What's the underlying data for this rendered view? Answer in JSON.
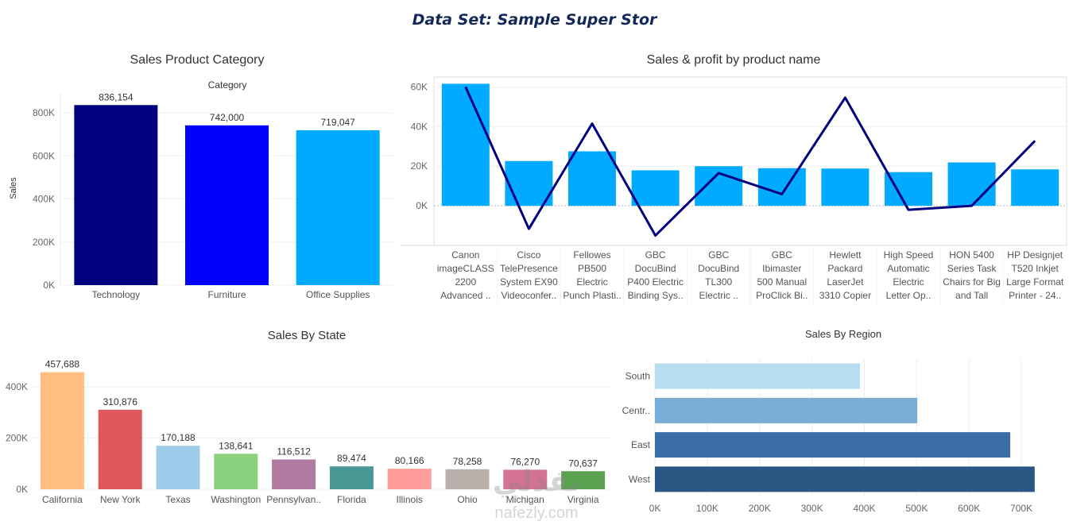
{
  "dashboard": {
    "title": "Data Set: Sample Super Stor"
  },
  "watermark": {
    "arabic": "نفذلي",
    "url": "nafezly.com"
  },
  "chart_data": [
    {
      "id": "category",
      "type": "bar",
      "title": "Sales Product Category",
      "header": "Category",
      "ylabel": "Sales",
      "categories": [
        "Technology",
        "Furniture",
        "Office Supplies"
      ],
      "values": [
        836154,
        742000,
        719047
      ],
      "value_labels": [
        "836,154",
        "742,000",
        "719,047"
      ],
      "colors": [
        "#000080",
        "#0000ff",
        "#00aaff"
      ],
      "ylim": [
        0,
        900000
      ],
      "yticks": [
        0,
        200000,
        400000,
        600000,
        800000
      ],
      "ytick_labels": [
        "0K",
        "200K",
        "400K",
        "600K",
        "800K"
      ],
      "grid": true
    },
    {
      "id": "product",
      "type": "bar+line",
      "title": "Sales & profit by product name",
      "categories": [
        [
          "Canon",
          "imageCLASS",
          "2200",
          "Advanced .."
        ],
        [
          "Cisco",
          "TelePresence",
          "System EX90",
          "Videoconfer.."
        ],
        [
          "Fellowes",
          "PB500",
          "Electric",
          "Punch Plasti.."
        ],
        [
          "GBC",
          "DocuBind",
          "P400 Electric",
          "Binding Sys.."
        ],
        [
          "GBC",
          "DocuBind",
          "TL300",
          "Electric .."
        ],
        [
          "GBC",
          "Ibimaster",
          "500 Manual",
          "ProClick Bi.."
        ],
        [
          "Hewlett",
          "Packard",
          "LaserJet",
          "3310 Copier"
        ],
        [
          "High Speed",
          "Automatic",
          "Electric",
          "Letter Op.."
        ],
        [
          "HON 5400",
          "Series Task",
          "Chairs for Big",
          "and Tall"
        ],
        [
          "HP Designjet",
          "T520 Inkjet",
          "Large Format",
          "Printer - 24.."
        ]
      ],
      "series": [
        {
          "name": "Sales",
          "type": "bar",
          "color": "#00aaff",
          "values": [
            61600,
            22600,
            27500,
            17900,
            20000,
            19000,
            18800,
            17000,
            21900,
            18400
          ]
        },
        {
          "name": "Profit",
          "type": "line",
          "color": "#000080",
          "values": [
            60000,
            -11600,
            41500,
            -15000,
            16500,
            5900,
            54600,
            -2000,
            0,
            32800
          ]
        }
      ],
      "ylim": [
        -20000,
        65000
      ],
      "yticks": [
        0,
        20000,
        40000,
        60000
      ],
      "ytick_labels": [
        "0K",
        "20K",
        "40K",
        "60K"
      ],
      "grid": true
    },
    {
      "id": "state",
      "type": "bar",
      "title": "Sales By State",
      "categories": [
        "California",
        "New York",
        "Texas",
        "Washington",
        "Pennsylvan..",
        "Florida",
        "Illinois",
        "Ohio",
        "Michigan",
        "Virginia"
      ],
      "values": [
        457688,
        310876,
        170188,
        138641,
        116512,
        89474,
        80166,
        78258,
        76270,
        70637
      ],
      "value_labels": [
        "457,688",
        "310,876",
        "170,188",
        "138,641",
        "116,512",
        "89,474",
        "80,166",
        "78,258",
        "76,270",
        "70,637"
      ],
      "colors": [
        "#ffbe7d",
        "#e15759",
        "#9dcbe9",
        "#8cd17d",
        "#b07aa1",
        "#499894",
        "#ff9d9a",
        "#bab0ac",
        "#d37295",
        "#59a14f"
      ],
      "ylim": [
        0,
        500000
      ],
      "yticks": [
        0,
        200000,
        400000
      ],
      "ytick_labels": [
        "0K",
        "200K",
        "400K"
      ],
      "grid": true
    },
    {
      "id": "region",
      "type": "bar-horizontal",
      "title": "Sales By Region",
      "categories": [
        "South",
        "Centr..",
        "East",
        "West"
      ],
      "values": [
        391722,
        501240,
        678781,
        725458
      ],
      "colors": [
        "#b8dcf0",
        "#7aaed6",
        "#3c6ea6",
        "#2a5783"
      ],
      "xlim": [
        0,
        750000
      ],
      "xticks": [
        0,
        100000,
        200000,
        300000,
        400000,
        500000,
        600000,
        700000
      ],
      "xtick_labels": [
        "0K",
        "100K",
        "200K",
        "300K",
        "400K",
        "500K",
        "600K",
        "700K"
      ],
      "grid": true
    }
  ]
}
